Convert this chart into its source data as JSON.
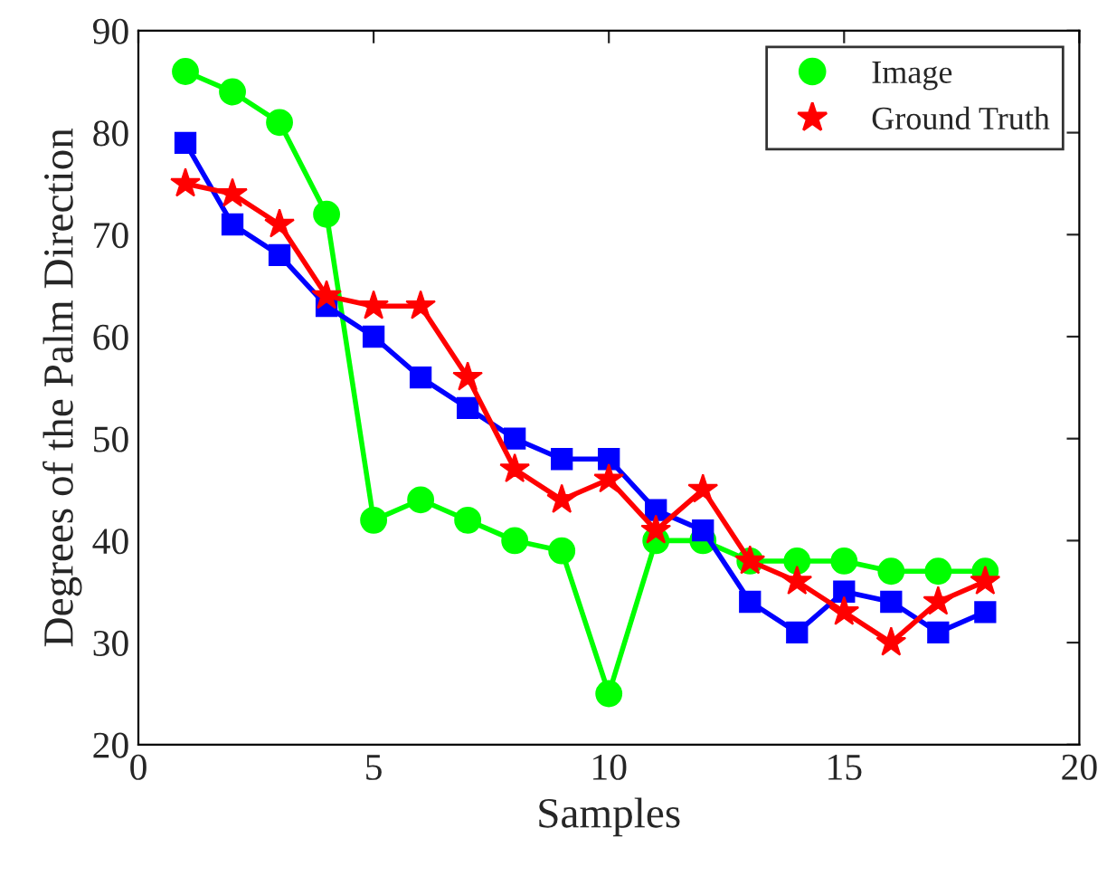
{
  "chart_data": {
    "type": "line",
    "xlabel": "Samples",
    "ylabel": "Degrees of the Palm Direction",
    "x": [
      1,
      2,
      3,
      4,
      5,
      6,
      7,
      8,
      9,
      10,
      11,
      12,
      13,
      14,
      15,
      16,
      17,
      18
    ],
    "series": [
      {
        "name": "Image",
        "color": "#00ff00",
        "marker": "circle",
        "values": [
          86,
          84,
          81,
          72,
          42,
          44,
          42,
          40,
          39,
          25,
          40,
          40,
          38,
          38,
          38,
          37,
          37,
          37
        ]
      },
      {
        "color": "#0000ff",
        "marker": "square",
        "values": [
          79,
          71,
          68,
          63,
          60,
          56,
          53,
          50,
          48,
          48,
          43,
          41,
          34,
          31,
          35,
          34,
          31,
          33
        ]
      },
      {
        "name": "Ground Truth",
        "color": "#ff0000",
        "marker": "star",
        "values": [
          75,
          74,
          71,
          64,
          63,
          63,
          56,
          47,
          44,
          46,
          41,
          45,
          38,
          36,
          33,
          30,
          34,
          36
        ]
      }
    ],
    "xlim": [
      0,
      20
    ],
    "xticks": [
      0,
      5,
      10,
      15,
      20
    ],
    "ylim": [
      20,
      90
    ],
    "yticks": [
      20,
      30,
      40,
      50,
      60,
      70,
      80,
      90
    ],
    "grid": false,
    "legend": "top right",
    "line_style": "solid"
  }
}
